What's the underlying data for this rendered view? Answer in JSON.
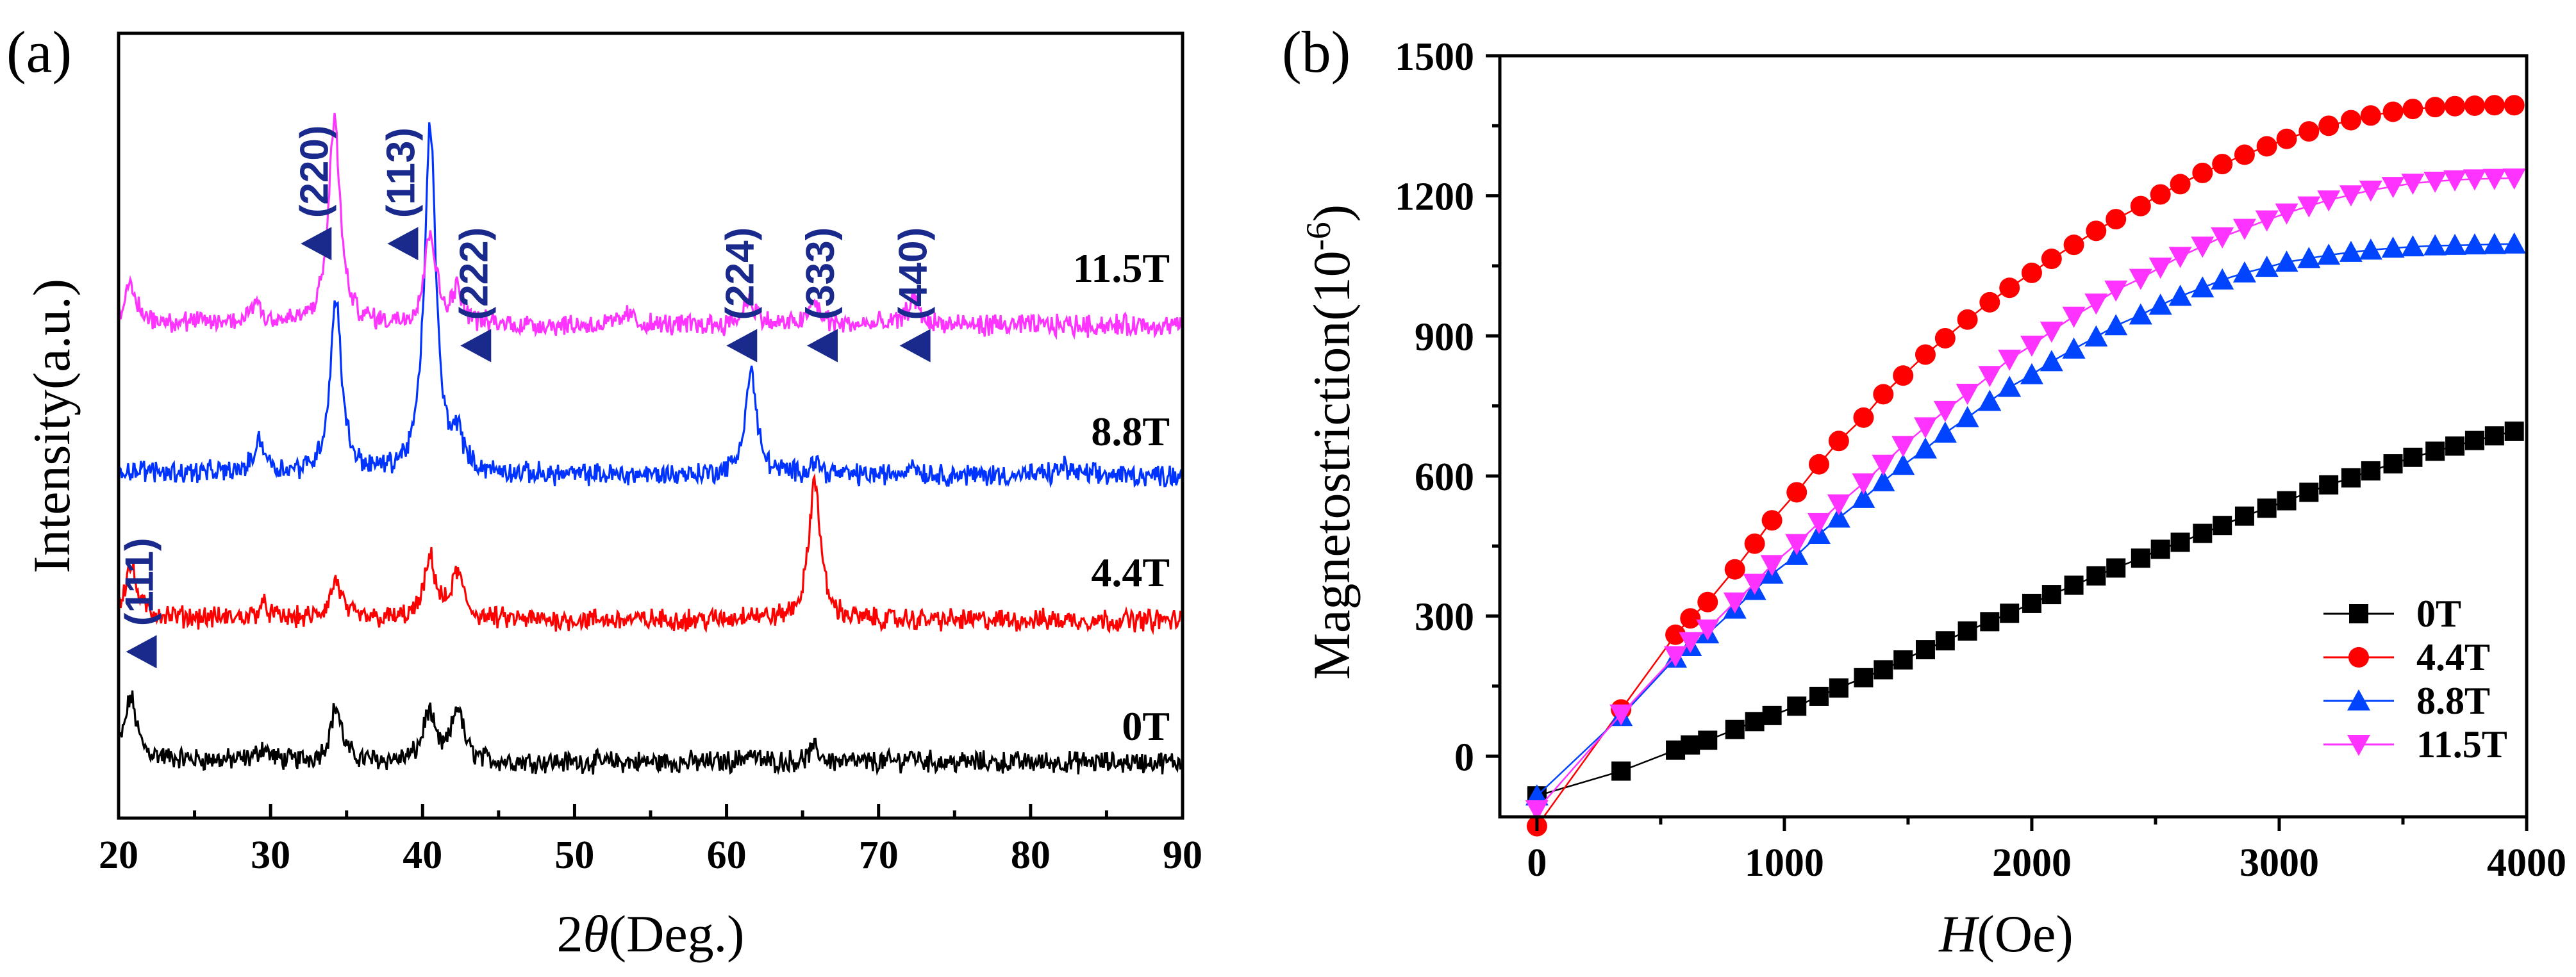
{
  "panels": {
    "a": {
      "label": "(a)"
    },
    "b": {
      "label": "(b)"
    }
  },
  "chart_data": [
    {
      "id": "xrd",
      "type": "line",
      "title": "",
      "xlabel_prefix": "2",
      "xlabel_symbol": "θ",
      "xlabel_suffix": "(Deg.)",
      "ylabel": "Intensity(a.u.)",
      "xlim": [
        20,
        90
      ],
      "xticks": [
        20,
        30,
        40,
        50,
        60,
        70,
        80,
        90
      ],
      "y_tick_labels": false,
      "stacked": true,
      "series": [
        {
          "name": "0T",
          "color": "#000000",
          "peaks": [
            {
              "x": 20.8,
              "height": 0.55
            },
            {
              "x": 29.5,
              "height": 0.12
            },
            {
              "x": 34.3,
              "height": 0.5
            },
            {
              "x": 40.4,
              "height": 0.45
            },
            {
              "x": 42.3,
              "height": 0.5
            },
            {
              "x": 61.5,
              "height": 0.08
            },
            {
              "x": 65.8,
              "height": 0.12
            },
            {
              "x": 72.2,
              "height": 0.06
            }
          ]
        },
        {
          "name": "4.4T",
          "color": "#ff0000",
          "peaks": [
            {
              "x": 20.8,
              "height": 0.45
            },
            {
              "x": 29.5,
              "height": 0.12
            },
            {
              "x": 34.3,
              "height": 0.35
            },
            {
              "x": 40.5,
              "height": 0.55
            },
            {
              "x": 42.3,
              "height": 0.42
            },
            {
              "x": 61.5,
              "height": 0.06
            },
            {
              "x": 65.8,
              "height": 1.3
            }
          ]
        },
        {
          "name": "8.8T",
          "color": "#0033ff",
          "peaks": [
            {
              "x": 29.3,
              "height": 0.3
            },
            {
              "x": 34.3,
              "height": 1.6
            },
            {
              "x": 40.5,
              "height": 3.2
            },
            {
              "x": 42.3,
              "height": 0.3
            },
            {
              "x": 61.6,
              "height": 0.95
            },
            {
              "x": 65.8,
              "height": 0.12
            },
            {
              "x": 72.2,
              "height": 0.1
            },
            {
              "x": 82.2,
              "height": 0.08
            }
          ]
        },
        {
          "name": "11.5T",
          "color": "#ff33ff",
          "peaks": [
            {
              "x": 20.8,
              "height": 0.3
            },
            {
              "x": 29.0,
              "height": 0.2
            },
            {
              "x": 34.2,
              "height": 1.9
            },
            {
              "x": 40.5,
              "height": 0.85
            },
            {
              "x": 42.3,
              "height": 0.3
            },
            {
              "x": 53.5,
              "height": 0.1
            },
            {
              "x": 61.5,
              "height": 0.25
            },
            {
              "x": 65.8,
              "height": 0.2
            },
            {
              "x": 72.3,
              "height": 0.25
            }
          ]
        }
      ],
      "annotations": [
        {
          "text": "(111)",
          "x": 21.5,
          "level": 0.69
        },
        {
          "text": "(220)",
          "x": 33.0,
          "level": 0.17
        },
        {
          "text": "(113)",
          "x": 38.7,
          "level": 0.17
        },
        {
          "text": "(222)",
          "x": 43.5,
          "level": 0.3
        },
        {
          "text": "(224)",
          "x": 61.0,
          "level": 0.3
        },
        {
          "text": "(333)",
          "x": 66.3,
          "level": 0.3
        },
        {
          "text": "(440)",
          "x": 72.4,
          "level": 0.3
        }
      ],
      "annotation_color": "#1a2a8c"
    },
    {
      "id": "magnetostriction",
      "type": "line",
      "title": "",
      "xlabel_symbol": "H",
      "xlabel_suffix": "(Oe)",
      "ylabel_prefix": "Magnetostriction(10",
      "ylabel_exp": "-6",
      "ylabel_suffix": ")",
      "xlim": [
        -150,
        4000
      ],
      "ylim": [
        -130,
        1500
      ],
      "xticks": [
        0,
        1000,
        2000,
        3000,
        4000
      ],
      "yticks": [
        0,
        300,
        600,
        900,
        1200,
        1500
      ],
      "legend_position": "bottom-right",
      "series": [
        {
          "name": "0T",
          "color": "#000000",
          "marker": "square",
          "x": [
            0,
            340,
            560,
            620,
            690,
            800,
            880,
            950,
            1050,
            1140,
            1220,
            1320,
            1400,
            1480,
            1570,
            1650,
            1740,
            1830,
            1910,
            2000,
            2080,
            2170,
            2260,
            2340,
            2440,
            2520,
            2600,
            2690,
            2770,
            2860,
            2950,
            3030,
            3120,
            3200,
            3290,
            3370,
            3460,
            3540,
            3630,
            3710,
            3790,
            3870,
            3950
          ],
          "y": [
            -85,
            -32,
            13,
            24,
            34,
            57,
            74,
            87,
            107,
            128,
            146,
            168,
            185,
            206,
            228,
            247,
            268,
            288,
            306,
            327,
            346,
            366,
            386,
            403,
            424,
            443,
            458,
            477,
            494,
            514,
            531,
            547,
            565,
            581,
            596,
            611,
            626,
            640,
            653,
            664,
            676,
            686,
            696
          ]
        },
        {
          "name": "4.4T",
          "color": "#ff0000",
          "marker": "circle",
          "x": [
            0,
            340,
            560,
            620,
            690,
            800,
            880,
            950,
            1050,
            1140,
            1220,
            1320,
            1400,
            1480,
            1570,
            1650,
            1740,
            1830,
            1910,
            2000,
            2080,
            2170,
            2260,
            2340,
            2440,
            2520,
            2600,
            2690,
            2770,
            2860,
            2950,
            3030,
            3120,
            3200,
            3290,
            3370,
            3460,
            3540,
            3630,
            3710,
            3790,
            3870,
            3950
          ],
          "y": [
            -150,
            100,
            260,
            295,
            330,
            400,
            455,
            505,
            565,
            625,
            675,
            725,
            775,
            815,
            860,
            895,
            935,
            972,
            1003,
            1035,
            1065,
            1095,
            1125,
            1150,
            1178,
            1203,
            1225,
            1249,
            1268,
            1288,
            1306,
            1322,
            1338,
            1350,
            1362,
            1372,
            1380,
            1386,
            1390,
            1392,
            1393,
            1394,
            1394
          ]
        },
        {
          "name": "8.8T",
          "color": "#0044ff",
          "marker": "triangle-up",
          "x": [
            0,
            340,
            560,
            620,
            690,
            800,
            880,
            950,
            1050,
            1140,
            1220,
            1320,
            1400,
            1480,
            1570,
            1650,
            1740,
            1830,
            1910,
            2000,
            2080,
            2170,
            2260,
            2340,
            2440,
            2520,
            2600,
            2690,
            2770,
            2860,
            2950,
            3030,
            3120,
            3200,
            3290,
            3370,
            3460,
            3540,
            3630,
            3710,
            3790,
            3870,
            3950
          ],
          "y": [
            -85,
            85,
            210,
            235,
            262,
            315,
            355,
            390,
            430,
            475,
            510,
            552,
            588,
            623,
            658,
            692,
            725,
            760,
            790,
            817,
            845,
            872,
            898,
            922,
            945,
            966,
            985,
            1003,
            1020,
            1035,
            1047,
            1058,
            1066,
            1073,
            1079,
            1084,
            1088,
            1091,
            1093,
            1094,
            1095,
            1096,
            1097
          ]
        },
        {
          "name": "11.5T",
          "color": "#ff33ff",
          "marker": "triangle-down",
          "x": [
            0,
            340,
            560,
            620,
            690,
            800,
            880,
            950,
            1050,
            1140,
            1220,
            1320,
            1400,
            1480,
            1570,
            1650,
            1740,
            1830,
            1910,
            2000,
            2080,
            2170,
            2260,
            2340,
            2440,
            2520,
            2600,
            2690,
            2770,
            2860,
            2950,
            3030,
            3120,
            3200,
            3290,
            3370,
            3460,
            3540,
            3630,
            3710,
            3790,
            3870,
            3950
          ],
          "y": [
            -115,
            90,
            215,
            245,
            272,
            330,
            370,
            410,
            455,
            500,
            540,
            585,
            625,
            665,
            705,
            740,
            777,
            815,
            850,
            880,
            910,
            942,
            970,
            998,
            1023,
            1047,
            1070,
            1092,
            1112,
            1130,
            1148,
            1163,
            1178,
            1191,
            1202,
            1212,
            1220,
            1227,
            1231,
            1234,
            1236,
            1237,
            1238
          ]
        }
      ]
    }
  ]
}
